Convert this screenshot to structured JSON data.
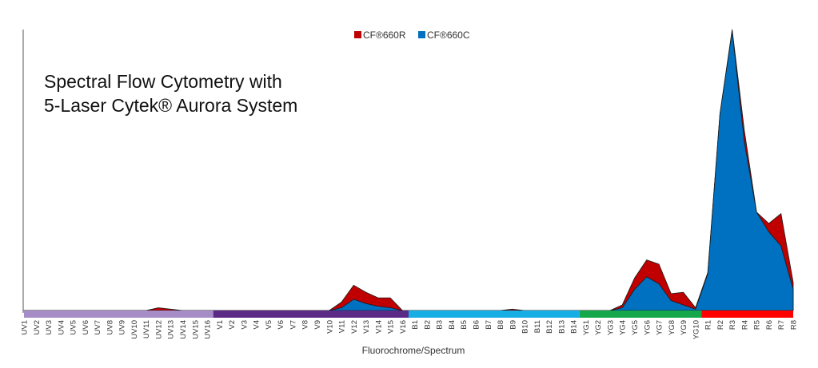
{
  "chart_data": {
    "type": "area",
    "title_lines": [
      "Spectral Flow Cytometry with",
      "5-Laser Cytek® Aurora System"
    ],
    "xlabel": "Fluorochrome/Spectrum",
    "ylabel": "",
    "ylim": [
      0,
      1
    ],
    "grid": false,
    "legend_position": "top-center",
    "categories": [
      "UV1",
      "UV2",
      "UV3",
      "UV4",
      "UV5",
      "UV6",
      "UV7",
      "UV8",
      "UV9",
      "UV10",
      "UV11",
      "UV12",
      "UV13",
      "UV14",
      "UV15",
      "UV16",
      "V1",
      "V2",
      "V3",
      "V4",
      "V5",
      "V6",
      "V7",
      "V8",
      "V9",
      "V10",
      "V11",
      "V12",
      "V13",
      "V14",
      "V15",
      "V16",
      "B1",
      "B2",
      "B3",
      "B4",
      "B5",
      "B6",
      "B7",
      "B8",
      "B9",
      "B10",
      "B11",
      "B12",
      "B13",
      "B14",
      "YG1",
      "YG2",
      "YG3",
      "YG4",
      "YG5",
      "YG6",
      "YG7",
      "YG8",
      "YG9",
      "YG10",
      "R1",
      "R2",
      "R3",
      "R4",
      "R5",
      "R6",
      "R7",
      "R8"
    ],
    "series": [
      {
        "name": "CF®660R",
        "color": "#c00000",
        "values": [
          0,
          0,
          0,
          0,
          0,
          0,
          0,
          0,
          0,
          0,
          0,
          0.01,
          0.005,
          0,
          0,
          0,
          0,
          0,
          0,
          0,
          0,
          0,
          0,
          0,
          0,
          0,
          0.03,
          0.09,
          0.065,
          0.045,
          0.045,
          0,
          0,
          0,
          0,
          0,
          0,
          0,
          0,
          0,
          0.005,
          0,
          0,
          0,
          0,
          0,
          0,
          0,
          0,
          0.02,
          0.115,
          0.18,
          0.165,
          0.06,
          0.065,
          0.01,
          0.135,
          0.7,
          1.0,
          0.64,
          0.35,
          0.31,
          0.345,
          0.1
        ]
      },
      {
        "name": "CF®660C",
        "color": "#0070c0",
        "values": [
          0,
          0,
          0,
          0,
          0,
          0,
          0,
          0,
          0,
          0,
          0,
          0,
          0,
          0,
          0,
          0,
          0,
          0,
          0,
          0,
          0,
          0,
          0,
          0,
          0,
          0,
          0.01,
          0.04,
          0.025,
          0.015,
          0.01,
          0,
          0,
          0,
          0,
          0,
          0,
          0,
          0,
          0,
          0,
          0,
          0,
          0,
          0,
          0,
          0,
          0,
          0,
          0.01,
          0.075,
          0.12,
          0.095,
          0.035,
          0.02,
          0.005,
          0.13,
          0.7,
          0.995,
          0.6,
          0.35,
          0.28,
          0.23,
          0.075
        ]
      }
    ],
    "laser_bands": [
      {
        "name": "UV",
        "from": "UV1",
        "to": "UV16",
        "color": "#a68dc8"
      },
      {
        "name": "V",
        "from": "V1",
        "to": "V16",
        "color": "#5b2a86"
      },
      {
        "name": "B",
        "from": "B1",
        "to": "B14",
        "color": "#17aee6"
      },
      {
        "name": "YG",
        "from": "YG1",
        "to": "YG10",
        "color": "#14a84a"
      },
      {
        "name": "R",
        "from": "R1",
        "to": "R8",
        "color": "#ff0000"
      }
    ]
  }
}
